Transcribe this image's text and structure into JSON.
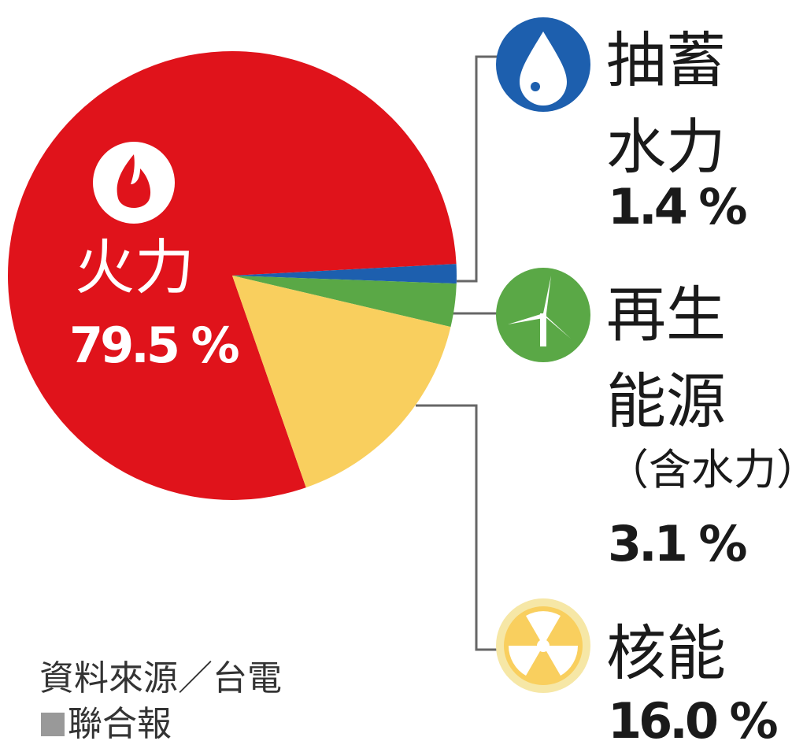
{
  "chart_data": {
    "type": "pie",
    "categories": [
      "火力",
      "抽蓄水力",
      "再生能源",
      "核能"
    ],
    "category_notes": [
      null,
      null,
      "（含水力）",
      null
    ],
    "values": [
      79.5,
      1.4,
      3.1,
      16.0
    ],
    "value_labels": [
      "79.5 %",
      "1.4 %",
      "3.1 %",
      "16.0 %"
    ],
    "colors": [
      "#e0131b",
      "#1d5fae",
      "#5aa846",
      "#f9cf5e"
    ],
    "source": "資料來源／台電",
    "credit": "聯合報"
  }
}
